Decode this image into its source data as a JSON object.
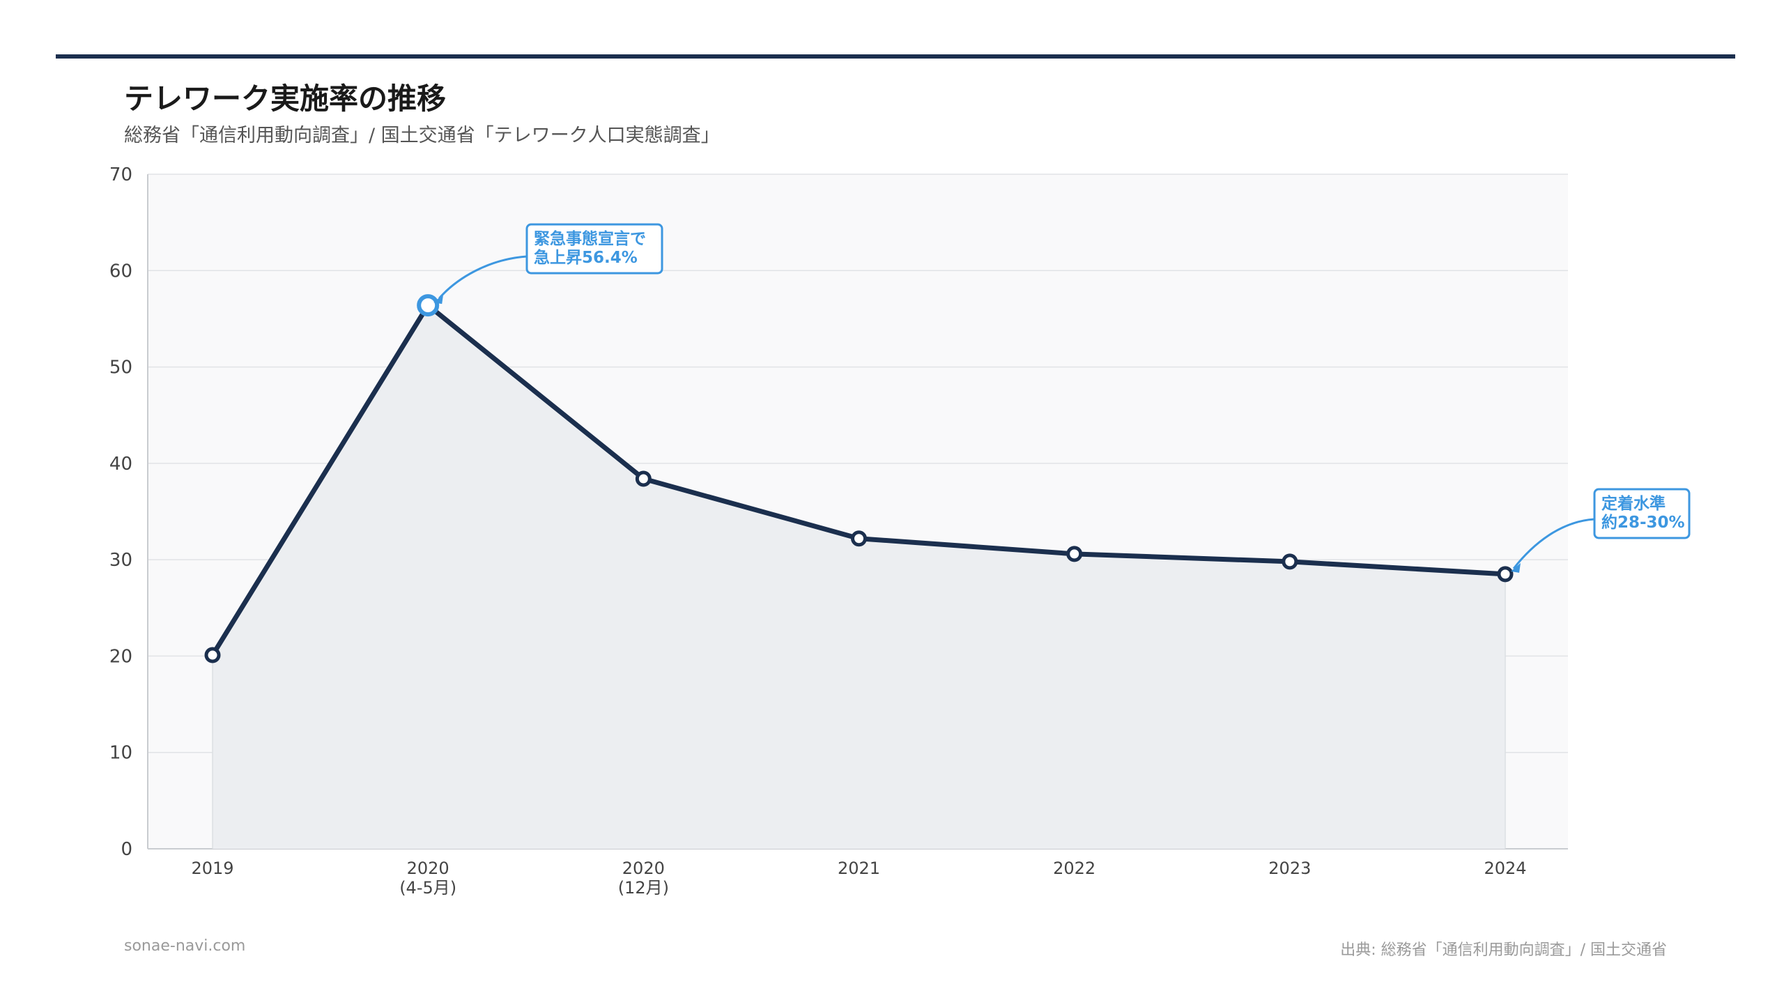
{
  "header": {
    "title": "テレワーク実施率の推移",
    "subtitle": "総務省「通信利用動向調査」/ 国土交通省「テレワーク人口実態調査」"
  },
  "footer": {
    "site": "sonae-navi.com",
    "source": "出典: 総務省「通信利用動向調査」/ 国土交通省"
  },
  "colors": {
    "line": "#1b2f4e",
    "accent": "#3d97e0",
    "plot_bg": "#f9f9fa",
    "area": "#eceef1"
  },
  "chart_data": {
    "type": "area",
    "categories": [
      [
        "2019"
      ],
      [
        "2020",
        "(4-5月)"
      ],
      [
        "2020",
        "(12月)"
      ],
      [
        "2021"
      ],
      [
        "2022"
      ],
      [
        "2023"
      ],
      [
        "2024"
      ]
    ],
    "values": [
      20.1,
      56.4,
      38.4,
      32.2,
      30.6,
      29.8,
      28.5
    ],
    "ylim": [
      0,
      70
    ],
    "yticks": [
      0,
      10,
      20,
      30,
      40,
      50,
      60,
      70
    ],
    "grid": true,
    "annotations": [
      {
        "point_index": 1,
        "lines": [
          "緊急事態宣言で",
          "急上昇56.4%"
        ]
      },
      {
        "point_index": 6,
        "lines": [
          "定着水準",
          "約28-30%"
        ]
      }
    ]
  }
}
